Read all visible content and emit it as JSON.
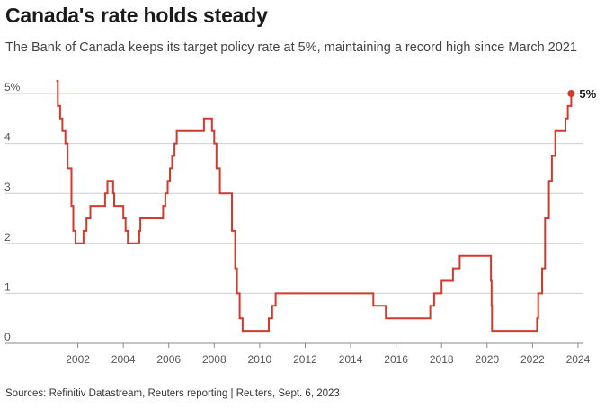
{
  "title": "Canada's rate holds steady",
  "subtitle": "The Bank of Canada keeps its target policy rate at 5%, maintaining a record high since March 2021",
  "source": "Sources: Refinitiv Datastream, Reuters reporting | Reuters, Sept. 6, 2023",
  "colors": {
    "series": "#d33a2c",
    "grid": "#cfcfcf",
    "axis": "#888888"
  },
  "chart_data": {
    "type": "line",
    "step": true,
    "title": "Canada's rate holds steady",
    "subtitle": "The Bank of Canada keeps its target policy rate at 5%, maintaining a record high since March 2021",
    "xlabel": "",
    "ylabel": "",
    "xlim": [
      2000.0,
      2024.2
    ],
    "ylim": [
      0,
      5.2
    ],
    "grid": true,
    "y_ticks": [
      {
        "value": 5,
        "label": "5%"
      },
      {
        "value": 4,
        "label": "4"
      },
      {
        "value": 3,
        "label": "3"
      },
      {
        "value": 2,
        "label": "2"
      },
      {
        "value": 1,
        "label": "1"
      },
      {
        "value": 0,
        "label": "0"
      }
    ],
    "x_ticks": [
      {
        "value": 2002,
        "label": "2002"
      },
      {
        "value": 2004,
        "label": "2004"
      },
      {
        "value": 2006,
        "label": "2006"
      },
      {
        "value": 2008,
        "label": "2008"
      },
      {
        "value": 2010,
        "label": "2010"
      },
      {
        "value": 2012,
        "label": "2012"
      },
      {
        "value": 2014,
        "label": "2014"
      },
      {
        "value": 2016,
        "label": "2016"
      },
      {
        "value": 2018,
        "label": "2018"
      },
      {
        "value": 2020,
        "label": "2020"
      },
      {
        "value": 2022,
        "label": "2022"
      },
      {
        "value": 2024,
        "label": "2024"
      }
    ],
    "series": [
      {
        "x": [
          2001.05,
          2001.12,
          2001.22,
          2001.32,
          2001.45,
          2001.55,
          2001.72,
          2001.8,
          2001.9,
          2002.25,
          2002.38,
          2002.55,
          2003.2,
          2003.3,
          2003.55,
          2003.6,
          2004.0,
          2004.1,
          2004.2,
          2004.7,
          2004.75,
          2005.75,
          2005.85,
          2005.95,
          2006.05,
          2006.15,
          2006.25,
          2006.35,
          2007.55,
          2007.9,
          2008.0,
          2008.1,
          2008.25,
          2008.78,
          2008.92,
          2009.0,
          2009.12,
          2009.25,
          2010.4,
          2010.55,
          2010.7,
          2015.0,
          2015.55,
          2017.5,
          2017.67,
          2018.0,
          2018.5,
          2018.8,
          2020.17,
          2020.2,
          2020.22,
          2022.2,
          2022.25,
          2022.42,
          2022.55,
          2022.72,
          2022.85,
          2023.0,
          2023.45,
          2023.55
        ],
        "y": [
          5.25,
          4.75,
          4.5,
          4.25,
          4.0,
          3.5,
          2.75,
          2.25,
          2.0,
          2.25,
          2.5,
          2.75,
          3.0,
          3.25,
          3.0,
          2.75,
          2.5,
          2.25,
          2.0,
          2.25,
          2.5,
          2.75,
          3.0,
          3.25,
          3.5,
          3.75,
          4.0,
          4.25,
          4.5,
          4.25,
          4.0,
          3.5,
          3.0,
          2.25,
          1.5,
          1.0,
          0.5,
          0.25,
          0.5,
          0.75,
          1.0,
          0.75,
          0.5,
          0.75,
          1.0,
          1.25,
          1.5,
          1.75,
          1.25,
          0.75,
          0.25,
          0.5,
          1.0,
          1.5,
          2.5,
          3.25,
          3.75,
          4.25,
          4.5,
          4.75
        ],
        "end": {
          "x": 2023.7,
          "y": 5.0
        },
        "end_label": "5%"
      }
    ]
  }
}
